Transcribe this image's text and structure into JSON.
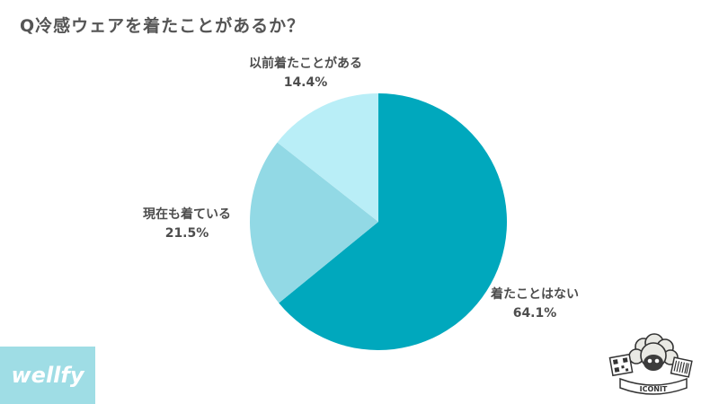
{
  "chart_data": {
    "type": "pie",
    "title": "Q冷感ウェアを着たことがあるか？",
    "start_angle_deg": 0,
    "direction": "clockwise",
    "slices": [
      {
        "label": "着たことはない",
        "value": 64.1,
        "value_label": "64.1%",
        "color": "#00a8bd"
      },
      {
        "label": "現在も着ている",
        "value": 21.5,
        "value_label": "21.5%",
        "color": "#92d9e5"
      },
      {
        "label": "以前着たことがある",
        "value": 14.4,
        "value_label": "14.4%",
        "color": "#b9eef7"
      }
    ]
  },
  "branding": {
    "logo_text": "wellfy",
    "logo_bg": "#9fdde5",
    "mascot_text": "ICONIT"
  }
}
